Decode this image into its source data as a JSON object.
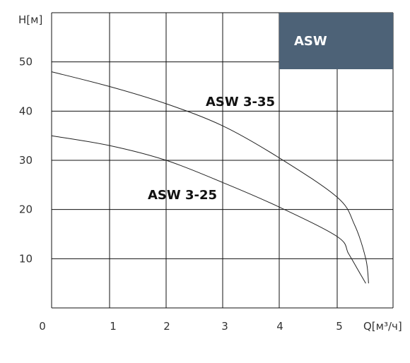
{
  "chart_data": {
    "type": "line",
    "title": "",
    "xlabel": "Q[м³/ч]",
    "ylabel": "H[м]",
    "xlim": [
      0,
      5.6
    ],
    "ylim": [
      0,
      60
    ],
    "x_ticks": [
      "0",
      "1",
      "2",
      "3",
      "4",
      "5"
    ],
    "y_ticks": [
      "10",
      "20",
      "30",
      "40",
      "50"
    ],
    "grid": true,
    "legend_placement": "top-right",
    "badge": {
      "text": "ASW",
      "color": "#4d6277"
    },
    "series": [
      {
        "name": "ASW 3-35",
        "x": [
          0,
          1,
          2,
          3,
          4,
          5,
          5.3,
          5.5,
          5.55
        ],
        "y": [
          48,
          45,
          41.5,
          37,
          30.5,
          22.5,
          17,
          10,
          5
        ]
      },
      {
        "name": "ASW 3-25",
        "x": [
          0,
          1,
          2,
          3,
          4,
          5,
          5.2,
          5.4,
          5.5
        ],
        "y": [
          35,
          33,
          30,
          25.5,
          20.5,
          14.5,
          11,
          7,
          5
        ]
      }
    ]
  }
}
